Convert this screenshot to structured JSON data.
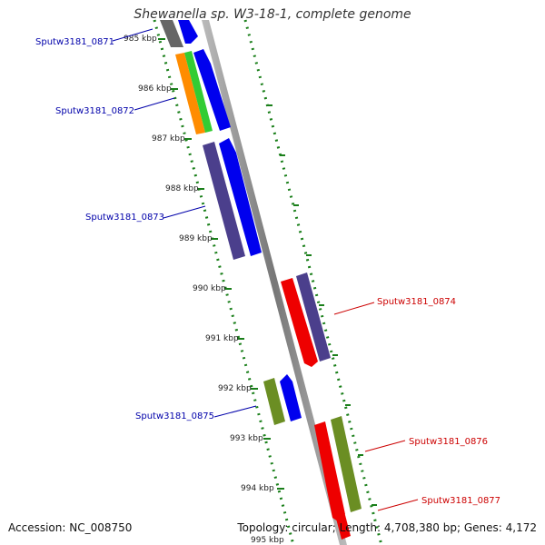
{
  "title": "Shewanella sp. W3-18-1, complete genome",
  "footer": {
    "accession_label": "Accession:",
    "accession": "NC_008750",
    "topology_label": "Topology:",
    "topology": "circular",
    "length_label": "Length:",
    "length": "4,708,380 bp",
    "genes_label": "Genes:",
    "genes": "4,172"
  },
  "ticks": [
    "985 kbp",
    "986 kbp",
    "987 kbp",
    "988 kbp",
    "989 kbp",
    "990 kbp",
    "991 kbp",
    "992 kbp",
    "993 kbp",
    "994 kbp",
    "995 kbp"
  ],
  "genes": [
    {
      "label": "Sputw3181_0871",
      "color": "#0000aa"
    },
    {
      "label": "Sputw3181_0872",
      "color": "#0000aa"
    },
    {
      "label": "Sputw3181_0873",
      "color": "#0000aa"
    },
    {
      "label": "Sputw3181_0874",
      "color": "#cc0000"
    },
    {
      "label": "Sputw3181_0875",
      "color": "#0000aa"
    },
    {
      "label": "Sputw3181_0876",
      "color": "#cc0000"
    },
    {
      "label": "Sputw3181_0877",
      "color": "#cc0000"
    }
  ],
  "colors": {
    "backbone": "#888888",
    "tick_dots": "#1a7f1a",
    "gene_blue": "#0000ee",
    "gene_purple": "#4b3f8c",
    "gene_red": "#ee0000",
    "gene_olive": "#6b8e23",
    "gene_orange": "#ff8c00",
    "gene_green": "#33cc33",
    "gene_gray": "#666666"
  }
}
